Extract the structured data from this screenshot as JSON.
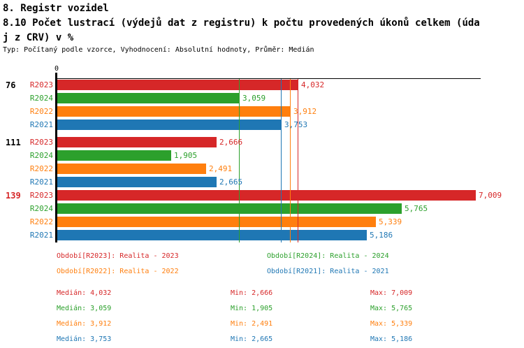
{
  "header": {
    "title": "8. Registr vozidel",
    "subtitle_line1": "8.10 Počet lustrací (výdejů dat z registru) k počtu provedených úkonů celkem (úda",
    "subtitle_line2": "j z CRV) v %",
    "meta": "Typ: Počítaný podle vzorce, Vyhodnocení: Absolutní hodnoty, Průměr: Medián"
  },
  "chart_data": {
    "type": "bar",
    "orientation": "horizontal",
    "title": "8.10 Počet lustrací (výdejů dat z registru) k počtu provedených úkonů celkem (údaj z CRV) v %",
    "axis": {
      "zero_label": "0",
      "xmin": 0,
      "xmax": 7009,
      "grid": false
    },
    "average_type": "Medián",
    "groups": [
      {
        "label": "76",
        "label_color": "#000000"
      },
      {
        "label": "111",
        "label_color": "#000000"
      },
      {
        "label": "139",
        "label_color": "#d62728"
      }
    ],
    "series": [
      {
        "key": "R2023",
        "legend": "Období[R2023]: Realita - 2023",
        "color": "#d62728",
        "values": [
          4032,
          2666,
          7009
        ],
        "value_labels": [
          "4,032",
          "2,666",
          "7,009"
        ],
        "median": 4032,
        "min": 2666,
        "max": 7009
      },
      {
        "key": "R2024",
        "legend": "Období[R2024]: Realita - 2024",
        "color": "#2ca02c",
        "values": [
          3059,
          1905,
          5765
        ],
        "value_labels": [
          "3,059",
          "1,905",
          "5,765"
        ],
        "median": 3059,
        "min": 1905,
        "max": 5765
      },
      {
        "key": "R2022",
        "legend": "Období[R2022]: Realita - 2022",
        "color": "#ff7f0e",
        "values": [
          3912,
          2491,
          5339
        ],
        "value_labels": [
          "3,912",
          "2,491",
          "5,339"
        ],
        "median": 3912,
        "min": 2491,
        "max": 5339
      },
      {
        "key": "R2021",
        "legend": "Období[R2021]: Realita - 2021",
        "color": "#1f77b4",
        "values": [
          3753,
          2665,
          5186
        ],
        "value_labels": [
          "3,753",
          "2,665",
          "5,186"
        ],
        "median": 3753,
        "min": 2665,
        "max": 5186
      }
    ],
    "median_lines": [
      4032,
      3059,
      3912,
      3753
    ]
  },
  "stats": [
    {
      "color": "#d62728",
      "median": "Medián: 4,032",
      "min": "Min: 2,666",
      "max": "Max: 7,009"
    },
    {
      "color": "#2ca02c",
      "median": "Medián: 3,059",
      "min": "Min: 1,905",
      "max": "Max: 5,765"
    },
    {
      "color": "#ff7f0e",
      "median": "Medián: 3,912",
      "min": "Min: 2,491",
      "max": "Max: 5,339"
    },
    {
      "color": "#1f77b4",
      "median": "Medián: 3,753",
      "min": "Min: 2,665",
      "max": "Max: 5,186"
    }
  ]
}
